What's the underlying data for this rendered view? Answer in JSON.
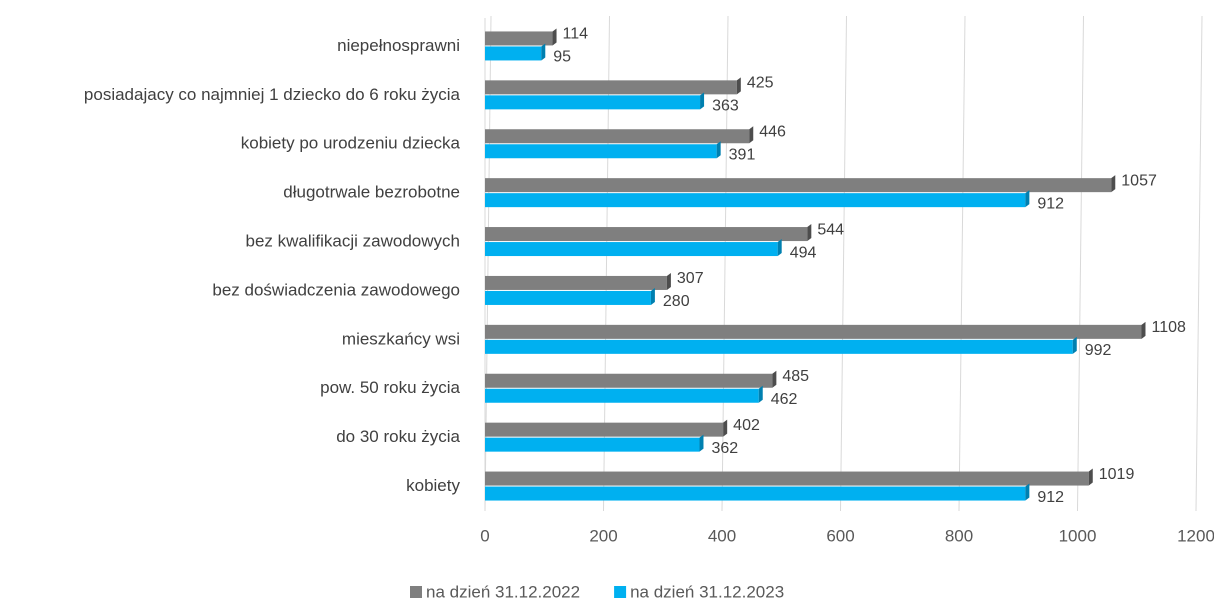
{
  "chart_data": {
    "type": "bar",
    "orientation": "horizontal",
    "categories": [
      "niepełnosprawni",
      "posiadajacy co najmniej 1 dziecko do 6 roku życia",
      "kobiety po urodzeniu dziecka",
      "długotrwale bezrobotne",
      "bez kwalifikacji zawodowych",
      "bez doświadczenia zawodowego",
      "mieszkańcy wsi",
      "pow. 50 roku życia",
      "do 30 roku życia",
      "kobiety"
    ],
    "series": [
      {
        "name": "na dzień 31.12.2022",
        "color": "#7f7f7f",
        "values": [
          114,
          425,
          446,
          1057,
          544,
          307,
          1108,
          485,
          402,
          1019
        ]
      },
      {
        "name": "na dzień 31.12.2023",
        "color": "#00b0f0",
        "values": [
          95,
          363,
          391,
          912,
          494,
          280,
          992,
          462,
          362,
          912
        ]
      }
    ],
    "xlim": [
      0,
      1200
    ],
    "xticks": [
      0,
      200,
      400,
      600,
      800,
      1000,
      1200
    ],
    "grid": true,
    "legend": "bottom"
  }
}
